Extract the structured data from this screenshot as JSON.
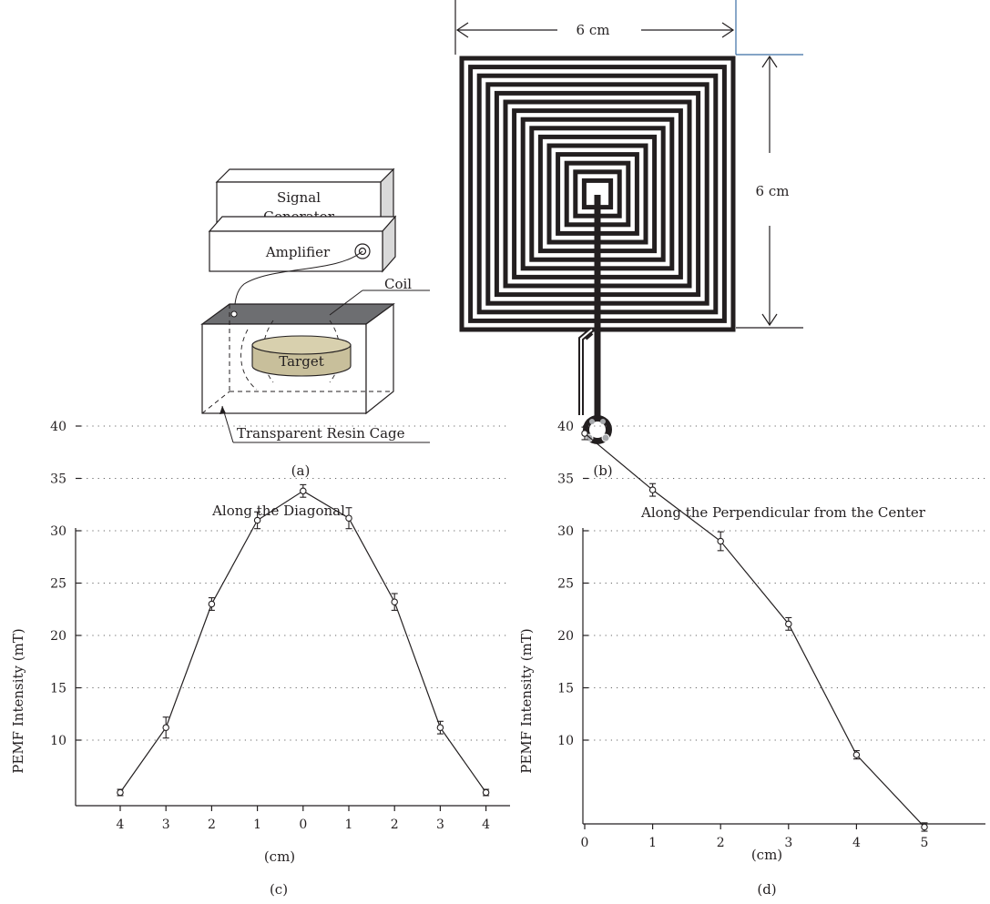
{
  "panel_a": {
    "signal_generator_line1": "Signal",
    "signal_generator_line2": "Generator",
    "amplifier": "Amplifier",
    "coil": "Coil",
    "target": "Target",
    "cage": "Transparent Resin Cage",
    "caption": "(a)"
  },
  "panel_b": {
    "width_dim": "6 cm",
    "height_dim": "6 cm",
    "caption": "(b)"
  },
  "panel_c": {
    "caption": "(c)"
  },
  "panel_d": {
    "caption": "(d)"
  },
  "chart_data": [
    {
      "type": "line",
      "title": "Along the Diagonal",
      "xlabel": "(cm)",
      "ylabel": "PEMF Intensity (mT)",
      "categories": [
        "4",
        "3",
        "2",
        "1",
        "0",
        "1",
        "2",
        "3",
        "4"
      ],
      "values": [
        5,
        11.2,
        23,
        31,
        33.8,
        31.2,
        23.2,
        11.2,
        5
      ],
      "errors": [
        0.3,
        1.0,
        0.6,
        0.8,
        0.6,
        1.0,
        0.8,
        0.6,
        0.3
      ],
      "yticks": [
        10,
        15,
        20,
        25,
        30,
        35,
        40
      ],
      "ylim": [
        0,
        40
      ],
      "grid": true
    },
    {
      "type": "line",
      "title": "Along the Perpendicular from the Center",
      "xlabel": "(cm)",
      "ylabel": "PEMF Intensity (mT)",
      "x": [
        0,
        1,
        2,
        3,
        4,
        5
      ],
      "values": [
        39.3,
        33.9,
        29,
        21.1,
        8.6,
        1.7
      ],
      "errors": [
        0.6,
        0.6,
        0.9,
        0.6,
        0.4,
        0.4
      ],
      "xticks": [
        0,
        1,
        2,
        3,
        4,
        5
      ],
      "yticks": [
        10,
        15,
        20,
        25,
        30,
        35,
        40
      ],
      "ylim": [
        0,
        40
      ],
      "grid": true
    }
  ]
}
